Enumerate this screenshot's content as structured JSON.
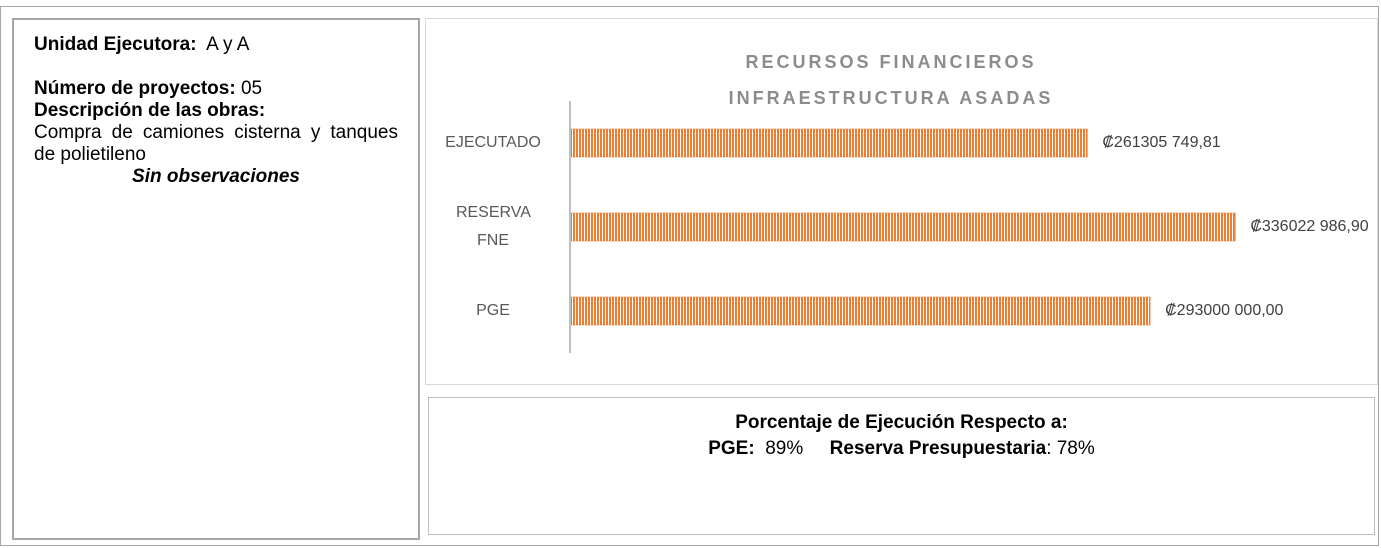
{
  "info": {
    "unit_label": "Unidad Ejecutora:",
    "unit_value": "A y A",
    "projects_label": "Número de proyectos:",
    "projects_value": "05",
    "description_label": "Descripción de las obras:",
    "description": "Compra de camiones cisterna y tanques de polietileno",
    "observations": "Sin observaciones"
  },
  "chart_data": {
    "type": "bar",
    "orientation": "horizontal",
    "title": [
      "RECURSOS FINANCIEROS",
      "INFRAESTRUCTURA ASADAS"
    ],
    "categories": [
      "EJECUTADO",
      "RESERVA FNE",
      "PGE"
    ],
    "values": [
      261305749.81,
      336022986.9,
      293000000.0
    ],
    "value_labels": [
      "₡261305 749,81",
      "₡336022 986,90",
      "₡293000 000,00"
    ],
    "color": "#ed7d31",
    "xlim": [
      0,
      400000000
    ]
  },
  "summary": {
    "title": "Porcentaje de Ejecución Respecto a:",
    "items": [
      {
        "label": "PGE:",
        "value": "89%"
      },
      {
        "label": "Reserva Presupuestaria",
        "value": ": 78%"
      }
    ]
  }
}
